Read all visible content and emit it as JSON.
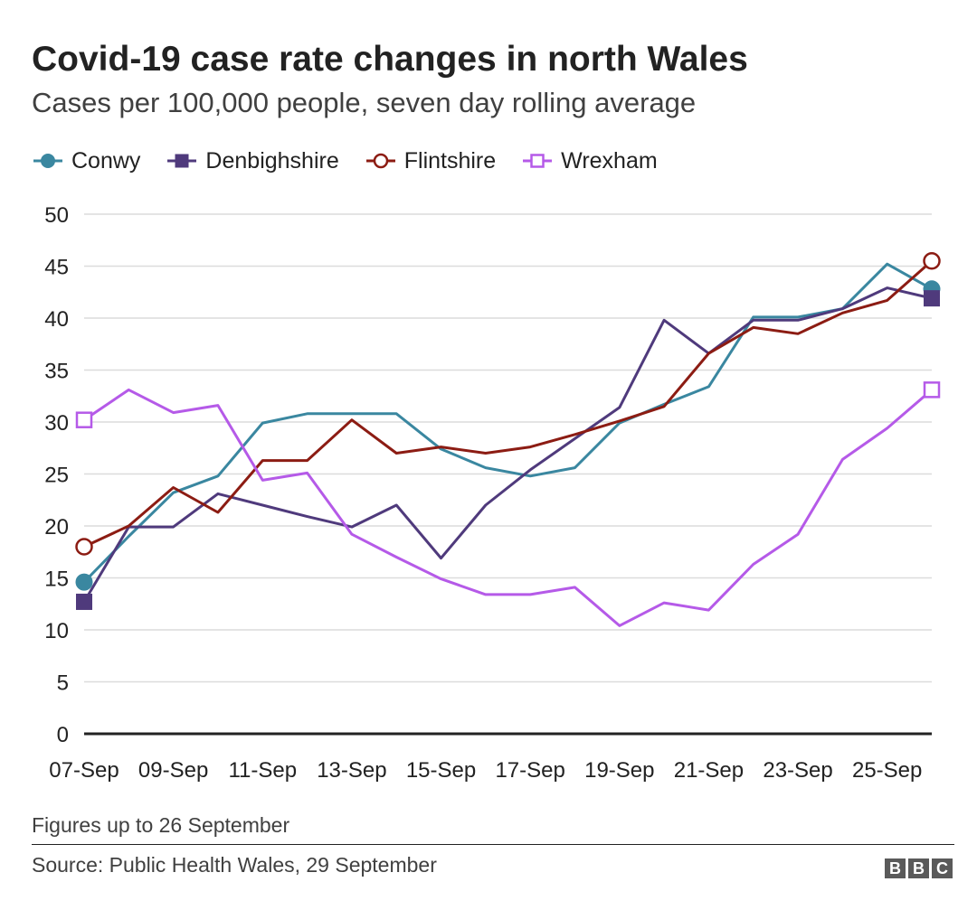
{
  "header": {
    "title": "Covid-19 case rate changes in north Wales",
    "subtitle": "Cases per 100,000 people, seven day rolling average"
  },
  "footer": {
    "note": "Figures up to 26 September",
    "source": "Source: Public Health Wales, 29 September",
    "logo_letters": [
      "B",
      "B",
      "C"
    ]
  },
  "chart_data": {
    "type": "line",
    "title": "Covid-19 case rate changes in north Wales",
    "subtitle": "Cases per 100,000 people, seven day rolling average",
    "xlabel": "",
    "ylabel": "",
    "ylim": [
      0,
      50
    ],
    "yticks": [
      0,
      5,
      10,
      15,
      20,
      25,
      30,
      35,
      40,
      45,
      50
    ],
    "grid": true,
    "legend": "top-left",
    "categories": [
      "07-Sep",
      "08-Sep",
      "09-Sep",
      "10-Sep",
      "11-Sep",
      "12-Sep",
      "13-Sep",
      "14-Sep",
      "15-Sep",
      "16-Sep",
      "17-Sep",
      "18-Sep",
      "19-Sep",
      "20-Sep",
      "21-Sep",
      "22-Sep",
      "23-Sep",
      "24-Sep",
      "25-Sep",
      "26-Sep"
    ],
    "xtick_labels": [
      "07-Sep",
      "09-Sep",
      "11-Sep",
      "13-Sep",
      "15-Sep",
      "17-Sep",
      "19-Sep",
      "21-Sep",
      "23-Sep",
      "25-Sep"
    ],
    "series": [
      {
        "name": "Conwy",
        "color": "#3a87a0",
        "marker": "circle-filled",
        "values": [
          14.6,
          19.0,
          23.2,
          24.8,
          29.9,
          30.8,
          30.8,
          30.8,
          27.4,
          25.6,
          24.8,
          25.6,
          29.9,
          31.7,
          33.4,
          40.1,
          40.1,
          40.9,
          45.2,
          42.8
        ]
      },
      {
        "name": "Denbighshire",
        "color": "#4f3a7c",
        "marker": "square-filled",
        "values": [
          12.7,
          19.9,
          19.9,
          23.1,
          22.0,
          20.9,
          19.9,
          22.0,
          16.9,
          22.0,
          25.4,
          28.4,
          31.4,
          39.8,
          36.6,
          39.8,
          39.8,
          40.9,
          42.9,
          41.9
        ]
      },
      {
        "name": "Flintshire",
        "color": "#8c1c13",
        "marker": "circle-open",
        "values": [
          18.0,
          20.0,
          23.7,
          21.3,
          26.3,
          26.3,
          30.2,
          27.0,
          27.6,
          27.0,
          27.6,
          28.8,
          30.1,
          31.5,
          36.6,
          39.1,
          38.5,
          40.5,
          41.7,
          45.5
        ]
      },
      {
        "name": "Wrexham",
        "color": "#b55ae8",
        "marker": "square-open",
        "values": [
          30.2,
          33.1,
          30.9,
          31.6,
          24.4,
          25.1,
          19.2,
          17.0,
          14.9,
          13.4,
          13.4,
          14.1,
          10.4,
          12.6,
          11.9,
          16.3,
          19.2,
          26.4,
          29.4,
          33.1
        ]
      }
    ]
  }
}
